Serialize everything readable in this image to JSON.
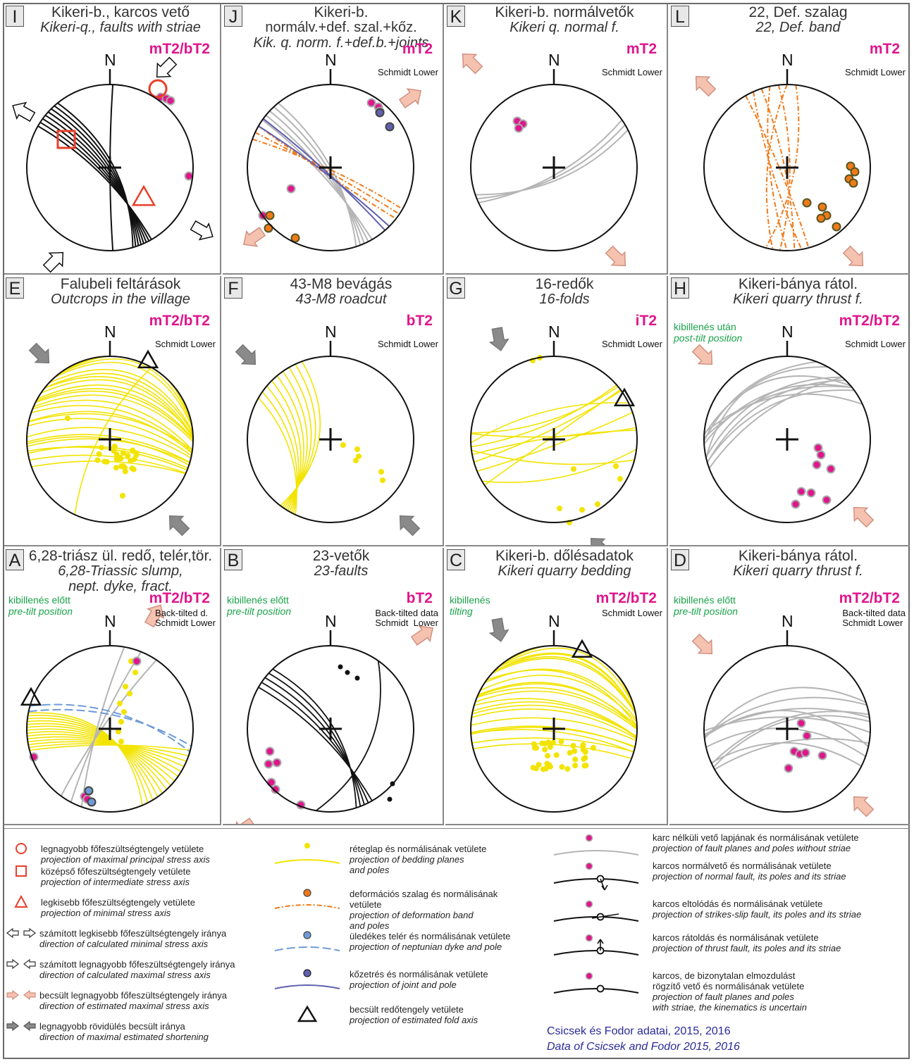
{
  "colors": {
    "bedding": "#f2e400",
    "pole": "#e0158c",
    "deformation_band": "#f07a1a",
    "dyke": "#6e9bd8",
    "joint": "#6060b0",
    "unstriated_fault": "#b5b5b5",
    "stress_axis": "#e8402a",
    "estimated_arrow": "#f6c2b0",
    "shortening_arrow": "#8a8a8a",
    "phase_label": "#e0158c",
    "tilt_label": "#1aa34a",
    "credit": "#2a2a9a"
  },
  "north_label": "N",
  "panels": [
    {
      "letter": "I",
      "t1": "Kikeri-b., karcos vető",
      "t2": "Kikeri-q., faults with striae",
      "t3": "",
      "phase": "mT2/bT2",
      "proj": "",
      "tilt1": "",
      "tilt2": ""
    },
    {
      "letter": "J",
      "t1": "Kikeri-b.",
      "t2": "normálv.+def. szal.+kőz.",
      "t3": "Kik. q. norm. f.+def.b.+joints",
      "phase": "mT2",
      "proj": "Schmidt Lower",
      "tilt1": "",
      "tilt2": ""
    },
    {
      "letter": "K",
      "t1": "Kikeri-b. normálvetők",
      "t2": "Kikeri q. normal f.",
      "t3": "",
      "phase": "mT2",
      "proj": "Schmidt Lower",
      "tilt1": "",
      "tilt2": ""
    },
    {
      "letter": "L",
      "t1": "22, Def. szalag",
      "t2": "22, Def. band",
      "t3": "",
      "phase": "mT2",
      "proj": "Schmidt Lower",
      "tilt1": "",
      "tilt2": ""
    },
    {
      "letter": "E",
      "t1": "Falubeli feltárások",
      "t2": "Outcrops in the village",
      "t3": "",
      "phase": "mT2/bT2",
      "proj": "Schmidt Lower",
      "tilt1": "",
      "tilt2": ""
    },
    {
      "letter": "F",
      "t1": "43-M8 bevágás",
      "t2": "43-M8 roadcut",
      "t3": "",
      "phase": "bT2",
      "proj": "Schmidt Lower",
      "tilt1": "",
      "tilt2": ""
    },
    {
      "letter": "G",
      "t1": "16-redők",
      "t2": "16-folds",
      "t3": "",
      "phase": "iT2",
      "proj": "Schmidt Lower",
      "tilt1": "",
      "tilt2": ""
    },
    {
      "letter": "H",
      "t1": "Kikeri-bánya rátol.",
      "t2": "Kikeri quarry thrust f.",
      "t3": "",
      "phase": "mT2/bT2",
      "proj": "Schmidt Lower",
      "tilt1": "kibillenés után",
      "tilt2": "post-tilt position"
    },
    {
      "letter": "A",
      "t1": "6,28-triász ül. redő, telér,tör.",
      "t2": "6,28-Triassic slump,",
      "t3": "nept. dyke, fract.",
      "phase": "mT2/bT2",
      "proj": "Back-tilted d.\nSchmidt Lower",
      "tilt1": "kibillenés előtt",
      "tilt2": "pre-tilt position"
    },
    {
      "letter": "B",
      "t1": "23-vetők",
      "t2": "23-faults",
      "t3": "",
      "phase": "bT2",
      "proj": "Back-tilted data\nSchmidt  Lower",
      "tilt1": "kibillenés előtt",
      "tilt2": "pre-tilt position"
    },
    {
      "letter": "C",
      "t1": "Kikeri-b. dőlésadatok",
      "t2": "Kikeri quarry bedding",
      "t3": "",
      "phase": "mT2/bT2",
      "proj": "Schmidt Lower",
      "tilt1": "kibillenés",
      "tilt2": "tilting"
    },
    {
      "letter": "D",
      "t1": "Kikeri-bánya rátol.",
      "t2": "Kikeri quarry thrust f.",
      "t3": "",
      "phase": "mT2/bT2",
      "proj": "Back-tilted data\nSchmidt Lower",
      "tilt1": "kibillenés előtt",
      "tilt2": "pre-tilt position"
    }
  ],
  "legend": {
    "col1": [
      {
        "hu": "legnagyobb főfeszültségtengely vetülete",
        "en": "projection of maximal principal stress axis",
        "symbol": "circle-icon"
      },
      {
        "hu": "középső főfeszültségtengely vetülete",
        "en": "projection of intermediate stress axis",
        "symbol": "square-icon"
      },
      {
        "hu": "legkisebb főfeszültségtengely vetülete",
        "en": "projection of minimal stress axis",
        "symbol": "triangle-icon"
      },
      {
        "hu": "számított legkisebb főfeszültségtengely iránya",
        "en": "direction of calculated minimal stress axis",
        "symbol": "outward-arrows-icon"
      },
      {
        "hu": "számított legnagyobb főfeszültségtengely iránya",
        "en": "direction of calculated maximal stress axis",
        "symbol": "inward-arrows-icon"
      },
      {
        "hu": "becsült legnagyobb főfeszültségtengely iránya",
        "en": "direction of estimated maximal stress axis",
        "symbol": "pink-arrows-icon"
      },
      {
        "hu": "legnagyobb rövidülés becsült iránya",
        "en": "direction of maximal estimated shortening",
        "symbol": "grey-arrows-icon"
      }
    ],
    "col2": [
      {
        "hu": "réteglap és normálisának vetülete",
        "en": "projection of bedding planes",
        "en2": "and poles",
        "symbol": "bedding-icon"
      },
      {
        "hu": "deformációs szalag és normálisának",
        "hu2": "vetülete",
        "en": "projection of deformation band",
        "en2": "and poles",
        "symbol": "deformation-band-icon"
      },
      {
        "hu": "üledékes telér és normálisának vetülete",
        "en": "projection of neptunian dyke and pole",
        "symbol": "dyke-icon"
      },
      {
        "hu": "kőzetrés és normálisának vetülete",
        "en": "projection of joint and pole",
        "symbol": "joint-icon"
      },
      {
        "hu": "becsült redőtengely vetülete",
        "en": "projection of estimated fold axis",
        "symbol": "fold-axis-icon"
      }
    ],
    "col3": [
      {
        "hu": "karc nélküli vető lapjának és normálisának vetülete",
        "en": "projection of fault planes and poles without striae",
        "symbol": "unstriated-fault-icon"
      },
      {
        "hu": "karcos normálvető és normálisának vetülete",
        "en": "projection of normal fault, its poles and its striae",
        "symbol": "normal-fault-icon"
      },
      {
        "hu": "karcos eltolódás és normálisának vetülete",
        "en": "projection of strikes-slip fault, its poles and its striae",
        "symbol": "strike-slip-icon"
      },
      {
        "hu": "karcos rátoldás és normálisának vetülete",
        "en": "projection of thrust fault, its poles and its striae",
        "symbol": "thrust-fault-icon"
      },
      {
        "hu": "karcos, de bizonytalan elmozdulást",
        "hu2": "rögzítő vető és normálisának vetülete",
        "en": "projection of fault planes and poles",
        "en2": "with striae, the kinematics is uncertain",
        "symbol": "uncertain-fault-icon"
      }
    ],
    "credit_hu": "Csicsek és Fodor adatai, 2015, 2016",
    "credit_en": "Data of Csicsek and Fodor 2015, 2016"
  }
}
